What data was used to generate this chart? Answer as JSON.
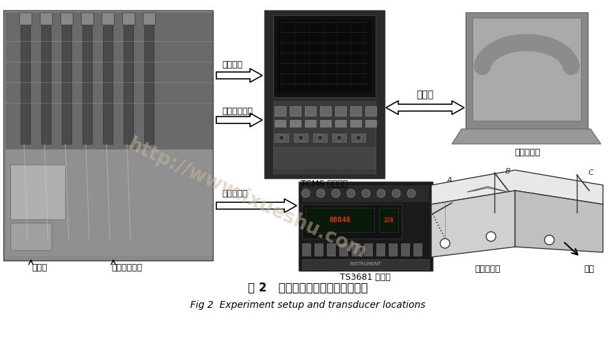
{
  "title_cn": "图 2   实验装置及其传感器位置示意",
  "title_en": "Fig 2  Experiment setup and transducer locations",
  "watermark": "http://www.ixueshu.com",
  "labels": {
    "zhen_dong": "振动信号",
    "dian_ya": "电压电流信号",
    "yi_tai": "以太网",
    "shang_wei": "上位计算机",
    "tcms": "TCMS 监测系统",
    "ya_jin": "压紧力信号",
    "ts3681": "TS3681 应变仪",
    "chuan_gan": "传感器位置",
    "ding_bu": "顶部",
    "ying_bian": "应变片",
    "ya_gan": "压紧杆和螺母",
    "sensor_A": "A",
    "sensor_B": "B",
    "sensor_C": "C"
  },
  "bg_color": "#ffffff",
  "text_color": "#000000",
  "arrow_color": "#000000",
  "watermark_color": "#c8b8a0"
}
